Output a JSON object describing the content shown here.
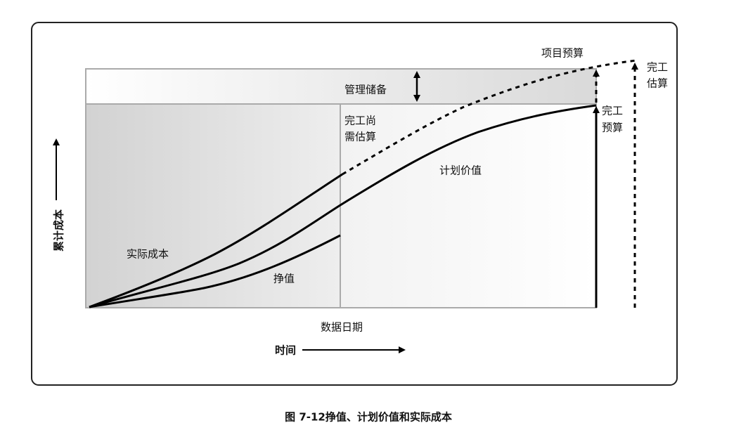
{
  "diagram": {
    "labels": {
      "project_budget": "项目预算",
      "eac": [
        "完工",
        "估算"
      ],
      "management_reserve": "管理储备",
      "etc": [
        "完工尚",
        "需估算"
      ],
      "planned_value": "计划价值",
      "actual_cost": "实际成本",
      "earned_value": "挣值",
      "bac": [
        "完工",
        "预算"
      ],
      "data_date": "数据日期"
    },
    "y_axis_label": "累计成本",
    "x_axis_label": "时间",
    "caption": "图 7-12挣值、计划价值和实际成本"
  }
}
